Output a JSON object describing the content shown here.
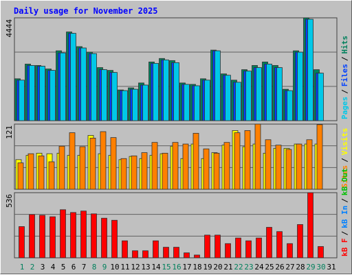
{
  "chart_data": [
    {
      "type": "bar",
      "title": "Daily usage for November 2025",
      "ylim": [
        0,
        4444
      ],
      "yticks": [
        4444
      ],
      "legend_separator": "/",
      "series": [
        {
          "name": "Hits",
          "color": "#00805c",
          "values": [
            1812,
            2446,
            2386,
            2235,
            3020,
            3835,
            3201,
            2960,
            2295,
            2174,
            1329,
            1419,
            1631,
            2537,
            2688,
            2597,
            1631,
            1570,
            1812,
            3050,
            2023,
            1752,
            2205,
            2386,
            2537,
            2386,
            1359,
            3020,
            4444,
            2205,
            0
          ]
        },
        {
          "name": "Files",
          "color": "#0040ff",
          "values": [
            1752,
            2386,
            2356,
            2174,
            2929,
            3775,
            3141,
            2899,
            2205,
            2084,
            1299,
            1359,
            1540,
            2477,
            2627,
            2507,
            1570,
            1510,
            1752,
            3020,
            1963,
            1661,
            2144,
            2295,
            2446,
            2295,
            1299,
            2960,
            4384,
            2054,
            0
          ]
        },
        {
          "name": "Pages",
          "color": "#00c8e8",
          "values": [
            1752,
            2386,
            2356,
            2174,
            2929,
            3775,
            3141,
            2899,
            2205,
            2084,
            1299,
            1359,
            1540,
            2477,
            2627,
            2507,
            1570,
            1510,
            1752,
            3020,
            1963,
            1661,
            2144,
            2295,
            2446,
            2295,
            1299,
            2960,
            4384,
            2054,
            0
          ]
        }
      ]
    },
    {
      "type": "bar",
      "ylim": [
        0,
        121
      ],
      "yticks": [
        121
      ],
      "legend_separator": "/",
      "series": [
        {
          "name": "Visits",
          "color": "#ffff00",
          "values": [
            55,
            63,
            67,
            66,
            67,
            63,
            63,
            100,
            66,
            63,
            55,
            61,
            57,
            63,
            66,
            80,
            57,
            84,
            57,
            68,
            82,
            109,
            79,
            84,
            67,
            76,
            76,
            84,
            84,
            84,
            0
          ]
        },
        {
          "name": "Sites",
          "color": "#ff8000",
          "values": [
            49,
            66,
            62,
            51,
            80,
            105,
            79,
            95,
            107,
            96,
            57,
            62,
            68,
            87,
            67,
            87,
            84,
            104,
            75,
            67,
            87,
            105,
            109,
            121,
            92,
            82,
            74,
            84,
            92,
            120,
            0
          ]
        }
      ]
    },
    {
      "type": "bar",
      "ylim": [
        0,
        536
      ],
      "yticks": [
        536
      ],
      "legend_separator": "/",
      "categories": [
        "1",
        "2",
        "3",
        "4",
        "5",
        "6",
        "7",
        "8",
        "9",
        "10",
        "11",
        "12",
        "13",
        "14",
        "15",
        "16",
        "17",
        "18",
        "19",
        "20",
        "21",
        "22",
        "23",
        "24",
        "25",
        "26",
        "27",
        "28",
        "29",
        "30",
        "31"
      ],
      "weekend_color": "#00805c",
      "weekends": [
        0,
        1,
        7,
        8,
        14,
        15,
        21,
        22,
        28,
        29
      ],
      "series": [
        {
          "name": "kB Out",
          "color": "#00c000",
          "values": [
            null,
            null,
            null,
            null,
            null,
            null,
            null,
            null,
            null,
            null,
            null,
            null,
            null,
            null,
            null,
            null,
            null,
            null,
            null,
            null,
            null,
            null,
            null,
            null,
            null,
            null,
            null,
            null,
            null,
            null,
            null
          ]
        },
        {
          "name": "kB In",
          "color": "#0080ff",
          "values": [
            null,
            null,
            null,
            null,
            null,
            null,
            null,
            null,
            null,
            null,
            null,
            null,
            null,
            null,
            null,
            null,
            null,
            null,
            null,
            null,
            null,
            null,
            null,
            null,
            null,
            null,
            null,
            null,
            null,
            null,
            null
          ]
        },
        {
          "name": "kB F",
          "color": "#ff0000",
          "values": [
            257,
            356,
            350,
            338,
            396,
            373,
            385,
            362,
            326,
            309,
            140,
            58,
            58,
            140,
            87,
            87,
            41,
            23,
            187,
            187,
            117,
            163,
            140,
            163,
            251,
            216,
            117,
            274,
            536,
            93,
            0
          ]
        }
      ]
    }
  ]
}
